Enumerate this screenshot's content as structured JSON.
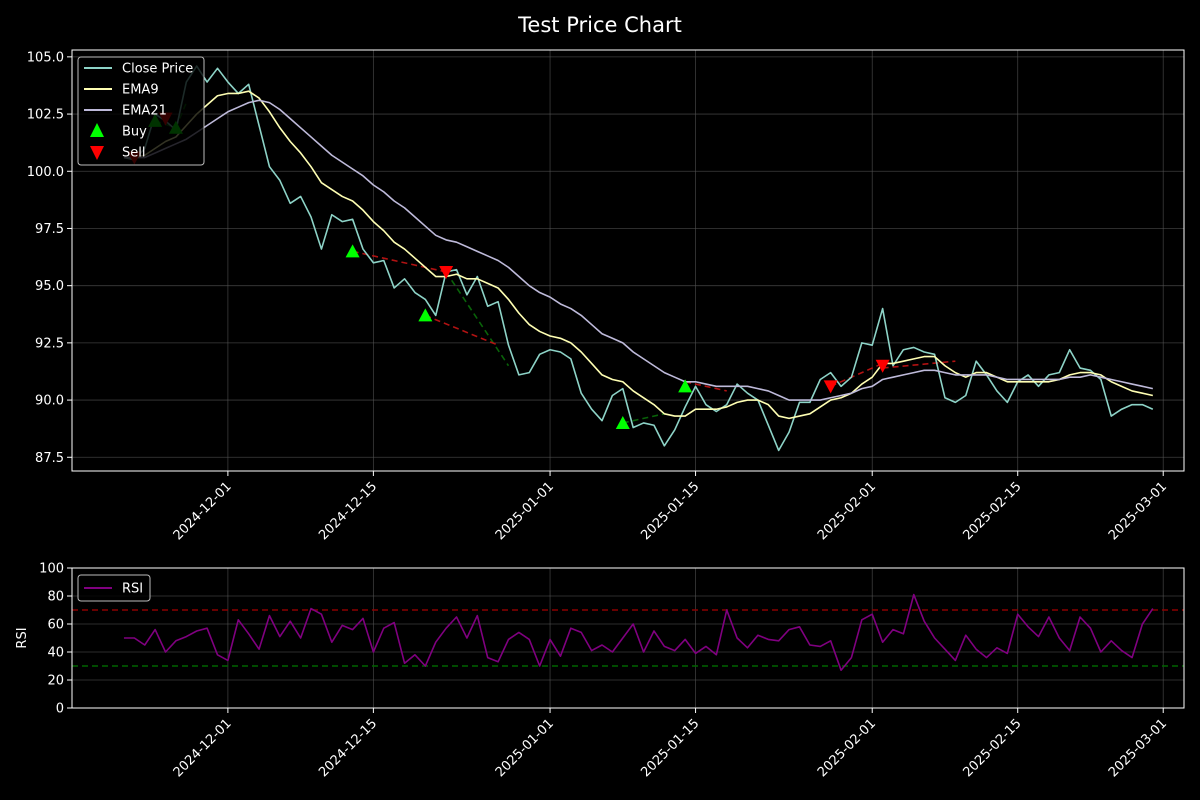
{
  "title": "Test Price Chart",
  "colors": {
    "background": "#000000",
    "close": "#8dd3c7",
    "ema9": "#ffffb3",
    "ema21": "#bebada",
    "buy": "#00ff00",
    "sell": "#ff0000",
    "rsi": "#800080",
    "overbought": "#8b0000",
    "oversold": "#006400",
    "grid": "#555555"
  },
  "chart_data": [
    {
      "type": "line",
      "panel": "price",
      "title": "Test Price Chart",
      "xlabel": "",
      "ylabel": "",
      "x_start": "2024-11-21",
      "x_ticks": [
        "2024-12-01",
        "2024-12-15",
        "2025-01-01",
        "2025-01-15",
        "2025-02-01",
        "2025-02-15",
        "2025-03-01"
      ],
      "y_ticks": [
        "87.5",
        "90.0",
        "92.5",
        "95.0",
        "97.5",
        "100.0",
        "102.5",
        "105.0"
      ],
      "ylim": [
        86.9,
        105.3
      ],
      "xlim": [
        "2024-11-16",
        "2025-03-03"
      ],
      "grid": true,
      "legend": "upper-left",
      "series": [
        {
          "name": "Close Price",
          "values": [
            100.6,
            100.5,
            101.0,
            102.5,
            102.2,
            101.8,
            103.9,
            104.6,
            103.9,
            104.5,
            103.9,
            103.4,
            103.8,
            102.0,
            100.2,
            99.6,
            98.6,
            98.9,
            98.0,
            96.6,
            98.1,
            97.8,
            97.9,
            96.6,
            96.0,
            96.1,
            94.9,
            95.3,
            94.7,
            94.4,
            93.7,
            95.6,
            95.7,
            94.6,
            95.4,
            94.1,
            94.3,
            92.4,
            91.1,
            91.2,
            92.0,
            92.2,
            92.1,
            91.8,
            90.3,
            89.6,
            89.1,
            90.2,
            90.5,
            88.8,
            89.0,
            88.9,
            88.0,
            88.7,
            89.7,
            90.6,
            89.8,
            89.5,
            89.8,
            90.7,
            90.3,
            90.0,
            88.9,
            87.8,
            88.6,
            89.9,
            89.9,
            90.9,
            91.2,
            90.6,
            91.0,
            92.5,
            92.4,
            94.0,
            91.5,
            92.2,
            92.3,
            92.1,
            92.0,
            90.1,
            89.9,
            90.2,
            91.7,
            91.1,
            90.4,
            89.9,
            90.8,
            91.1,
            90.6,
            91.1,
            91.2,
            92.2,
            91.4,
            91.3,
            90.9,
            89.3,
            89.6,
            89.8,
            89.8,
            89.6
          ],
          "start_offset": 0
        },
        {
          "name": "EMA9",
          "values": [
            100.6,
            100.6,
            100.7,
            101.0,
            101.3,
            101.5,
            102.0,
            102.5,
            102.9,
            103.3,
            103.4,
            103.4,
            103.5,
            103.2,
            102.6,
            101.9,
            101.3,
            100.8,
            100.2,
            99.5,
            99.2,
            98.9,
            98.7,
            98.3,
            97.8,
            97.4,
            96.9,
            96.6,
            96.2,
            95.8,
            95.4,
            95.4,
            95.5,
            95.3,
            95.3,
            95.1,
            94.9,
            94.4,
            93.8,
            93.3,
            93.0,
            92.8,
            92.7,
            92.5,
            92.1,
            91.6,
            91.1,
            90.9,
            90.8,
            90.4,
            90.1,
            89.8,
            89.4,
            89.3,
            89.3,
            89.6,
            89.6,
            89.6,
            89.7,
            89.9,
            90.0,
            90.0,
            89.8,
            89.3,
            89.2,
            89.3,
            89.4,
            89.7,
            90.0,
            90.1,
            90.3,
            90.7,
            91.0,
            91.6,
            91.6,
            91.7,
            91.8,
            91.9,
            91.9,
            91.5,
            91.2,
            91.0,
            91.2,
            91.2,
            91.0,
            90.8,
            90.8,
            90.8,
            90.8,
            90.8,
            90.9,
            91.1,
            91.2,
            91.2,
            91.1,
            90.8,
            90.6,
            90.4,
            90.3,
            90.2
          ],
          "start_offset": 0
        },
        {
          "name": "EMA21",
          "values": [
            100.6,
            100.6,
            100.6,
            100.8,
            101.0,
            101.2,
            101.4,
            101.7,
            102.0,
            102.3,
            102.6,
            102.8,
            103.0,
            103.1,
            103.0,
            102.7,
            102.3,
            101.9,
            101.5,
            101.1,
            100.7,
            100.4,
            100.1,
            99.8,
            99.4,
            99.1,
            98.7,
            98.4,
            98.0,
            97.6,
            97.2,
            97.0,
            96.9,
            96.7,
            96.5,
            96.3,
            96.1,
            95.8,
            95.4,
            95.0,
            94.7,
            94.5,
            94.2,
            94.0,
            93.7,
            93.3,
            92.9,
            92.7,
            92.5,
            92.1,
            91.8,
            91.5,
            91.2,
            91.0,
            90.8,
            90.8,
            90.7,
            90.6,
            90.6,
            90.6,
            90.6,
            90.5,
            90.4,
            90.2,
            90.0,
            90.0,
            90.0,
            90.0,
            90.1,
            90.2,
            90.3,
            90.5,
            90.6,
            90.9,
            91.0,
            91.1,
            91.2,
            91.3,
            91.3,
            91.2,
            91.1,
            91.1,
            91.1,
            91.1,
            91.0,
            90.9,
            90.9,
            90.9,
            90.9,
            90.9,
            90.9,
            91.0,
            91.0,
            91.1,
            91.0,
            90.9,
            90.8,
            90.7,
            90.6,
            90.5
          ],
          "start_offset": 0
        }
      ],
      "markers": [
        {
          "name": "Buy",
          "shape": "triangle-up",
          "points": [
            [
              "2024-11-24",
              102.2
            ],
            [
              "2024-11-26",
              101.9
            ],
            [
              "2024-12-13",
              96.5
            ],
            [
              "2024-12-20",
              93.7
            ],
            [
              "2025-01-08",
              89.0
            ],
            [
              "2025-01-14",
              90.6
            ]
          ]
        },
        {
          "name": "Sell",
          "shape": "triangle-down",
          "points": [
            [
              "2024-11-22",
              100.6
            ],
            [
              "2024-11-25",
              102.3
            ],
            [
              "2024-12-22",
              95.6
            ],
            [
              "2025-01-28",
              90.6
            ],
            [
              "2025-02-02",
              91.5
            ]
          ]
        }
      ],
      "trade_lines": [
        {
          "color": "buy",
          "from": [
            "2024-11-24",
            102.2
          ],
          "to": [
            "2024-11-26",
            101.9
          ]
        },
        {
          "color": "buy",
          "from": [
            "2024-11-26",
            101.9
          ],
          "to": [
            "2024-11-27",
            103.0
          ]
        },
        {
          "color": "sell",
          "from": [
            "2024-12-13",
            96.5
          ],
          "to": [
            "2024-12-22",
            95.6
          ]
        },
        {
          "color": "buy",
          "from": [
            "2024-12-22",
            95.6
          ],
          "to": [
            "2024-12-28",
            91.5
          ]
        },
        {
          "color": "sell",
          "from": [
            "2024-12-20",
            93.7
          ],
          "to": [
            "2024-12-27",
            92.4
          ]
        },
        {
          "color": "buy",
          "from": [
            "2025-01-08",
            89.0
          ],
          "to": [
            "2025-01-12",
            89.4
          ]
        },
        {
          "color": "sell",
          "from": [
            "2025-01-14",
            90.8
          ],
          "to": [
            "2025-01-18",
            90.4
          ]
        },
        {
          "color": "sell",
          "from": [
            "2025-01-28",
            90.6
          ],
          "to": [
            "2025-02-02",
            91.6
          ]
        },
        {
          "color": "sell",
          "from": [
            "2025-02-02",
            91.4
          ],
          "to": [
            "2025-02-09",
            91.7
          ]
        }
      ]
    },
    {
      "type": "line",
      "panel": "rsi",
      "ylabel": "RSI",
      "y_ticks": [
        "0",
        "20",
        "40",
        "60",
        "80",
        "100"
      ],
      "ylim": [
        0,
        100
      ],
      "x_ticks": [
        "2024-12-01",
        "2024-12-15",
        "2025-01-01",
        "2025-01-15",
        "2025-02-01",
        "2025-02-15",
        "2025-03-01"
      ],
      "grid": true,
      "legend": "upper-left",
      "overbought": 70,
      "oversold": 30,
      "series": [
        {
          "name": "RSI",
          "values": [
            50,
            50,
            45,
            56,
            40,
            48,
            51,
            55,
            57,
            38,
            34,
            63,
            53,
            42,
            66,
            51,
            62,
            50,
            71,
            67,
            47,
            59,
            56,
            64,
            40,
            57,
            61,
            32,
            38,
            30,
            47,
            57,
            65,
            50,
            66,
            36,
            33,
            49,
            54,
            49,
            30,
            49,
            37,
            57,
            54,
            41,
            45,
            40,
            50,
            60,
            40,
            55,
            44,
            41,
            49,
            39,
            44,
            38,
            70,
            50,
            43,
            52,
            49,
            48,
            56,
            58,
            45,
            44,
            48,
            27,
            36,
            63,
            67,
            47,
            56,
            53,
            81,
            62,
            50,
            42,
            34,
            52,
            42,
            36,
            43,
            39,
            67,
            58,
            51,
            65,
            50,
            41,
            65,
            57,
            40,
            48,
            41,
            36,
            60,
            71
          ],
          "start_offset": 0
        }
      ]
    }
  ]
}
